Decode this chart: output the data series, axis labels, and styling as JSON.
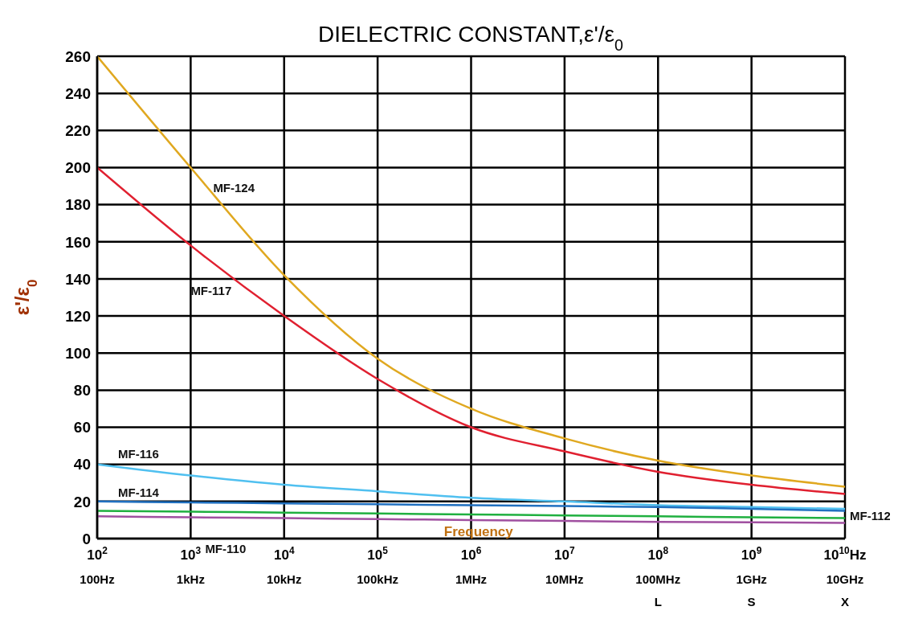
{
  "chart_data": {
    "type": "line",
    "title": "DIELECTRIC CONSTANT,ε'/ε$_{0}$",
    "xlabel": "Frequency",
    "ylabel": "ε'/ε$_{0}$",
    "x": [
      100,
      1000,
      10000,
      100000,
      1000000,
      10000000,
      100000000,
      1000000000,
      10000000000
    ],
    "series": [
      {
        "name": "MF-124",
        "color": "#e0a820",
        "values": [
          260,
          200,
          142,
          97,
          70,
          54,
          42,
          34,
          28
        ]
      },
      {
        "name": "MF-117",
        "color": "#e02030",
        "values": [
          200,
          158,
          120,
          86,
          60,
          47,
          36,
          29,
          24
        ]
      },
      {
        "name": "MF-116",
        "color": "#50c0f0",
        "values": [
          40,
          34,
          29,
          25.5,
          22,
          20,
          18,
          17,
          16
        ]
      },
      {
        "name": "MF-114",
        "color": "#2070c0",
        "values": [
          20,
          19.5,
          19,
          18.5,
          18,
          17.5,
          17,
          16,
          15
        ]
      },
      {
        "name": "MF-112",
        "color": "#20b040",
        "values": [
          15,
          14.5,
          14,
          13.5,
          13,
          12.5,
          12,
          11.5,
          11
        ]
      },
      {
        "name": "MF-110",
        "color": "#a050a0",
        "values": [
          12,
          11.5,
          11,
          10.5,
          10,
          9.5,
          9,
          8.8,
          8.5
        ]
      }
    ],
    "log": "x",
    "xlim": [
      100,
      10000000000
    ],
    "xticks": [
      {
        "value": 100,
        "label": "10$^{2}$"
      },
      {
        "value": 1000,
        "label": "10$^{3}$"
      },
      {
        "value": 10000,
        "label": "10$^{4}$"
      },
      {
        "value": 100000,
        "label": "10$^{5}$"
      },
      {
        "value": 1000000,
        "label": "10$^{6}$"
      },
      {
        "value": 10000000,
        "label": "10$^{7}$"
      },
      {
        "value": 100000000,
        "label": "10$^{8}$"
      },
      {
        "value": 1000000000,
        "label": "10$^{9}$"
      },
      {
        "value": 10000000000,
        "label": "10$^{10}$Hz"
      }
    ],
    "ylim": [
      0,
      260
    ],
    "yticks": [
      0,
      20,
      40,
      60,
      80,
      100,
      120,
      140,
      160,
      180,
      200,
      220,
      240,
      260
    ],
    "annotations": [
      "100Hz",
      "1kHz",
      "10kHz",
      "100kHz",
      "1MHz",
      "10MHz",
      "100MHz\nL",
      "1GHz\nS",
      "10GHz\nX"
    ],
    "grid": true,
    "legend": false,
    "marker": "none",
    "line_style": "solid"
  }
}
